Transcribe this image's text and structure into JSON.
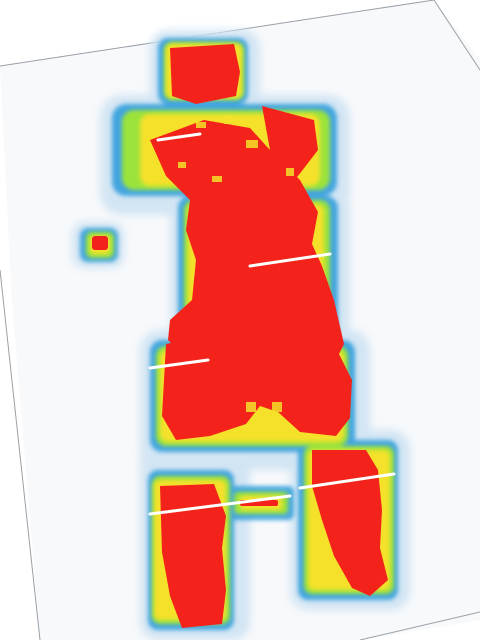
{
  "image": {
    "subject": "heatmap-human-figure",
    "colors": {
      "paper": "#f7f9fb",
      "paper_edge": "#9aa0a6",
      "hot": "#f3231c",
      "warm": "#f5e12a",
      "mid": "#9be33b",
      "cool": "#2ecfa0",
      "cold": "#2a9bdc",
      "halo": "#cfe3f3",
      "seam": "#ffffff"
    }
  }
}
